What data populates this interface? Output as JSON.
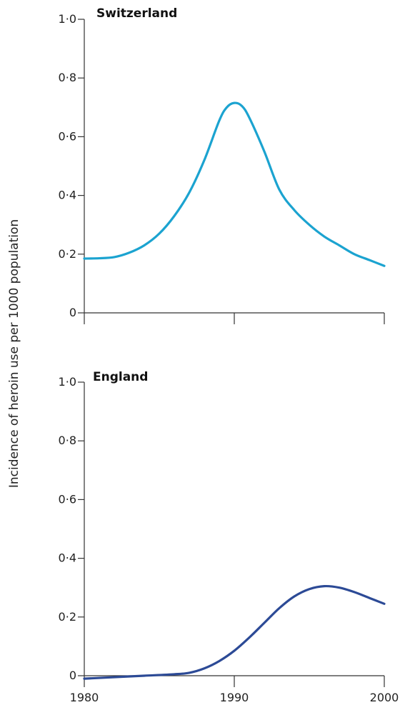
{
  "chart_data": [
    {
      "type": "line",
      "title": "Switzerland",
      "xlabel": "",
      "ylabel": "Incidence of heroin use per 1000 population",
      "xlim": [
        1980,
        2000
      ],
      "ylim": [
        0,
        1.0
      ],
      "yticks": [
        "0",
        "0·2",
        "0·4",
        "0·6",
        "0·8",
        "1·0"
      ],
      "xticks": [
        "",
        "",
        ""
      ],
      "grid": false,
      "color": "#1ba3d0",
      "x": [
        1980,
        1981,
        1982,
        1983,
        1984,
        1985,
        1986,
        1987,
        1988,
        1989,
        1989.5,
        1990,
        1990.5,
        1991,
        1992,
        1993,
        1994,
        1995,
        1996,
        1997,
        1998,
        1999,
        2000
      ],
      "y": [
        0.185,
        0.186,
        0.19,
        0.205,
        0.23,
        0.27,
        0.33,
        0.41,
        0.52,
        0.655,
        0.7,
        0.715,
        0.705,
        0.665,
        0.55,
        0.42,
        0.35,
        0.3,
        0.26,
        0.23,
        0.2,
        0.18,
        0.16
      ]
    },
    {
      "type": "line",
      "title": "England",
      "xlabel": "",
      "ylabel": "Incidence of heroin use per 1000 population",
      "xlim": [
        1980,
        2000
      ],
      "ylim": [
        0,
        1.0
      ],
      "yticks": [
        "0",
        "0·2",
        "0·4",
        "0·6",
        "0·8",
        "1·0"
      ],
      "xticks": [
        "1980",
        "1990",
        "2000"
      ],
      "grid": false,
      "color": "#2c4a96",
      "x": [
        1980,
        1982,
        1984,
        1986,
        1987,
        1988,
        1989,
        1990,
        1991,
        1992,
        1993,
        1994,
        1995,
        1996,
        1997,
        1998,
        1999,
        2000
      ],
      "y": [
        -0.01,
        -0.005,
        0.0,
        0.005,
        0.01,
        0.025,
        0.05,
        0.085,
        0.13,
        0.18,
        0.23,
        0.27,
        0.295,
        0.305,
        0.3,
        0.285,
        0.265,
        0.245
      ]
    }
  ],
  "shared": {
    "ylabel": "Incidence of heroin use per 1000 population"
  }
}
